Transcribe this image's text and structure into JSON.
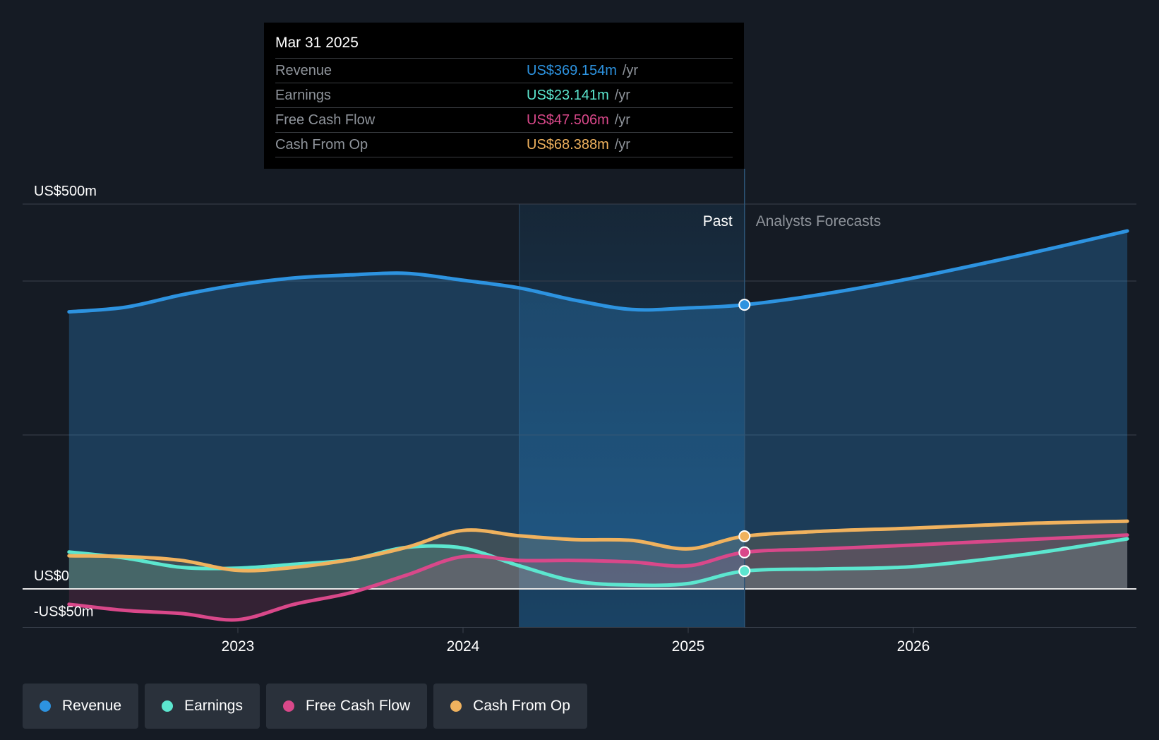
{
  "tooltip": {
    "date": "Mar 31 2025",
    "rows": [
      {
        "label": "Revenue",
        "value": "US$369.154m",
        "unit": "/yr",
        "color": "#2d93e0"
      },
      {
        "label": "Earnings",
        "value": "US$23.141m",
        "unit": "/yr",
        "color": "#5ce6cf"
      },
      {
        "label": "Free Cash Flow",
        "value": "US$47.506m",
        "unit": "/yr",
        "color": "#d9488a"
      },
      {
        "label": "Cash From Op",
        "value": "US$68.388m",
        "unit": "/yr",
        "color": "#f0b25e"
      }
    ]
  },
  "legend": [
    {
      "label": "Revenue",
      "color": "#2d93e0"
    },
    {
      "label": "Earnings",
      "color": "#5ce6cf"
    },
    {
      "label": "Free Cash Flow",
      "color": "#d9488a"
    },
    {
      "label": "Cash From Op",
      "color": "#f0b25e"
    }
  ],
  "chart_data": {
    "type": "line",
    "title": "",
    "xlabel": "",
    "ylabel": "",
    "y_unit": "US$m",
    "ylim": [
      -50,
      500
    ],
    "xlim": [
      2022.0,
      2026.95
    ],
    "y_tick_labels": [
      {
        "value": 500,
        "label": "US$500m"
      },
      {
        "value": 0,
        "label": "US$0"
      },
      {
        "value": -50,
        "label": "-US$50m"
      }
    ],
    "gridlines": [
      500,
      400,
      200,
      0
    ],
    "x_ticks": [
      {
        "value": 2023,
        "label": "2023"
      },
      {
        "value": 2024,
        "label": "2024"
      },
      {
        "value": 2025,
        "label": "2025"
      },
      {
        "value": 2026,
        "label": "2026"
      }
    ],
    "past_label": "Past",
    "forecast_label": "Analysts Forecasts",
    "past_region_start": 2024.25,
    "divider": 2025.25,
    "colors": {
      "background": "#151b24",
      "grid": "#3a414c",
      "zero_line": "#e6e6e6",
      "past_band": "#1b4a70"
    },
    "series": [
      {
        "name": "Revenue",
        "color": "#2d93e0",
        "area": true,
        "points": [
          [
            2022.25,
            360
          ],
          [
            2022.5,
            366
          ],
          [
            2022.75,
            382
          ],
          [
            2023,
            395
          ],
          [
            2023.25,
            404
          ],
          [
            2023.5,
            408
          ],
          [
            2023.75,
            410
          ],
          [
            2024,
            401
          ],
          [
            2024.25,
            391
          ],
          [
            2024.5,
            375
          ],
          [
            2024.75,
            363
          ],
          [
            2025,
            365
          ],
          [
            2025.25,
            369.154
          ],
          [
            2025.6,
            383
          ],
          [
            2026,
            404
          ],
          [
            2026.5,
            435
          ],
          [
            2026.95,
            465
          ]
        ],
        "marker": [
          2025.25,
          369.154
        ]
      },
      {
        "name": "Earnings",
        "color": "#5ce6cf",
        "area": true,
        "points": [
          [
            2022.25,
            48
          ],
          [
            2022.5,
            40
          ],
          [
            2022.75,
            28
          ],
          [
            2023,
            27
          ],
          [
            2023.25,
            32
          ],
          [
            2023.5,
            38
          ],
          [
            2023.75,
            54
          ],
          [
            2024,
            53
          ],
          [
            2024.25,
            30
          ],
          [
            2024.5,
            10
          ],
          [
            2024.75,
            5
          ],
          [
            2025,
            7
          ],
          [
            2025.25,
            23.141
          ],
          [
            2025.6,
            26
          ],
          [
            2026,
            29
          ],
          [
            2026.5,
            45
          ],
          [
            2026.95,
            65
          ]
        ],
        "marker": [
          2025.25,
          23.141
        ]
      },
      {
        "name": "Free Cash Flow",
        "color": "#d9488a",
        "area": true,
        "points": [
          [
            2022.25,
            -20
          ],
          [
            2022.5,
            -28
          ],
          [
            2022.75,
            -32
          ],
          [
            2023,
            -40
          ],
          [
            2023.25,
            -20
          ],
          [
            2023.5,
            -5
          ],
          [
            2023.75,
            18
          ],
          [
            2024,
            42
          ],
          [
            2024.25,
            37
          ],
          [
            2024.5,
            37
          ],
          [
            2024.75,
            35
          ],
          [
            2025,
            30
          ],
          [
            2025.25,
            47.506
          ],
          [
            2025.6,
            52
          ],
          [
            2026,
            57
          ],
          [
            2026.5,
            64
          ],
          [
            2026.95,
            70
          ]
        ],
        "marker": [
          2025.25,
          47.506
        ]
      },
      {
        "name": "Cash From Op",
        "color": "#f0b25e",
        "area": true,
        "points": [
          [
            2022.25,
            43
          ],
          [
            2022.5,
            42
          ],
          [
            2022.75,
            37
          ],
          [
            2023,
            24
          ],
          [
            2023.25,
            28
          ],
          [
            2023.5,
            38
          ],
          [
            2023.75,
            54
          ],
          [
            2024,
            76
          ],
          [
            2024.25,
            69
          ],
          [
            2024.5,
            64
          ],
          [
            2024.75,
            63
          ],
          [
            2025,
            52
          ],
          [
            2025.25,
            68.388
          ],
          [
            2025.6,
            75
          ],
          [
            2026,
            79
          ],
          [
            2026.5,
            85
          ],
          [
            2026.95,
            88
          ]
        ],
        "marker": [
          2025.25,
          68.388
        ]
      }
    ]
  }
}
